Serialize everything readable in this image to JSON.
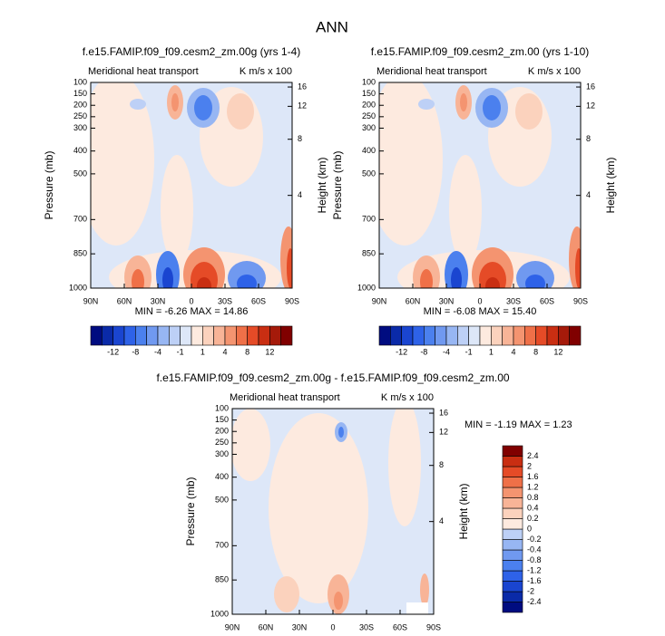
{
  "title": "ANN",
  "chart_data": [
    {
      "type": "contour",
      "title": "f.e15.FAMIP.f09_f09.cesm2_zm.00g (yrs 1-4)",
      "subtitle_left": "Meridional heat transport",
      "subtitle_right": "K m/s x 100",
      "ylabel": "Pressure (mb)",
      "y2label": "Height (km)",
      "xlim": [
        90,
        -90
      ],
      "xticks": [
        {
          "value": 90,
          "label": "90N"
        },
        {
          "value": 60,
          "label": "60N"
        },
        {
          "value": 30,
          "label": "30N"
        },
        0,
        {
          "value": -30,
          "label": "30S"
        },
        {
          "value": -60,
          "label": "60S"
        },
        {
          "value": -90,
          "label": "90S"
        }
      ],
      "ylim": [
        100,
        1000
      ],
      "yticks": [
        100,
        150,
        200,
        250,
        300,
        400,
        500,
        700,
        850,
        1000
      ],
      "y2ticks": [
        16,
        12,
        8,
        4
      ],
      "annotation": "MIN = -6.26  MAX = 14.86",
      "colorbar": {
        "orientation": "horizontal",
        "colors": [
          "#000c80",
          "#0a2aa8",
          "#1a45d0",
          "#2e62e8",
          "#4b80ee",
          "#7099f0",
          "#97b6f3",
          "#bdd0f6",
          "#dde7f8",
          "#fdeadf",
          "#fbd2bd",
          "#f8b497",
          "#f49470",
          "#ef7048",
          "#e54b27",
          "#c92e12",
          "#a51a0a",
          "#800000"
        ],
        "ticks": [
          -12,
          -8,
          -4,
          -1,
          1,
          4,
          8,
          12
        ]
      }
    },
    {
      "type": "contour",
      "title": "f.e15.FAMIP.f09_f09.cesm2_zm.00 (yrs 1-10)",
      "subtitle_left": "Meridional heat transport",
      "subtitle_right": "K m/s x 100",
      "ylabel": "Pressure (mb)",
      "y2label": "Height (km)",
      "xlim": [
        90,
        -90
      ],
      "xticks": [
        {
          "value": 90,
          "label": "90N"
        },
        {
          "value": 60,
          "label": "60N"
        },
        {
          "value": 30,
          "label": "30N"
        },
        0,
        {
          "value": -30,
          "label": "30S"
        },
        {
          "value": -60,
          "label": "60S"
        },
        {
          "value": -90,
          "label": "90S"
        }
      ],
      "ylim": [
        100,
        1000
      ],
      "yticks": [
        100,
        150,
        200,
        250,
        300,
        400,
        500,
        700,
        850,
        1000
      ],
      "y2ticks": [
        16,
        12,
        8,
        4
      ],
      "annotation": "MIN = -6.08  MAX = 15.40",
      "colorbar": {
        "orientation": "horizontal",
        "colors": [
          "#000c80",
          "#0a2aa8",
          "#1a45d0",
          "#2e62e8",
          "#4b80ee",
          "#7099f0",
          "#97b6f3",
          "#bdd0f6",
          "#dde7f8",
          "#fdeadf",
          "#fbd2bd",
          "#f8b497",
          "#f49470",
          "#ef7048",
          "#e54b27",
          "#c92e12",
          "#a51a0a",
          "#800000"
        ],
        "ticks": [
          -12,
          -8,
          -4,
          -1,
          1,
          4,
          8,
          12
        ]
      }
    },
    {
      "type": "contour",
      "title": "f.e15.FAMIP.f09_f09.cesm2_zm.00g - f.e15.FAMIP.f09_f09.cesm2_zm.00",
      "subtitle_left": "Meridional heat transport",
      "subtitle_right": "K m/s x 100",
      "ylabel": "Pressure (mb)",
      "y2label": "Height (km)",
      "xlim": [
        90,
        -90
      ],
      "xticks": [
        {
          "value": 90,
          "label": "90N"
        },
        {
          "value": 60,
          "label": "60N"
        },
        {
          "value": 30,
          "label": "30N"
        },
        0,
        {
          "value": -30,
          "label": "30S"
        },
        {
          "value": -60,
          "label": "60S"
        },
        {
          "value": -90,
          "label": "90S"
        }
      ],
      "ylim": [
        100,
        1000
      ],
      "yticks": [
        100,
        150,
        200,
        250,
        300,
        400,
        500,
        700,
        850,
        1000
      ],
      "y2ticks": [
        16,
        12,
        8,
        4
      ],
      "annotation": "MIN = -1.19  MAX =  1.23",
      "colorbar": {
        "orientation": "vertical",
        "colors": [
          "#000c80",
          "#0a2aa8",
          "#1a45d0",
          "#2e62e8",
          "#4b80ee",
          "#7099f0",
          "#97b6f3",
          "#bdd0f6",
          "#fdeadf",
          "#fbd2bd",
          "#f8b497",
          "#f49470",
          "#ef7048",
          "#e54b27",
          "#c92e12",
          "#800000"
        ],
        "ticks": [
          -2.4,
          -2,
          -1.6,
          -1.2,
          -0.8,
          -0.4,
          -0.2,
          0,
          0.2,
          0.4,
          0.8,
          1.2,
          1.6,
          2,
          2.4
        ]
      }
    }
  ]
}
